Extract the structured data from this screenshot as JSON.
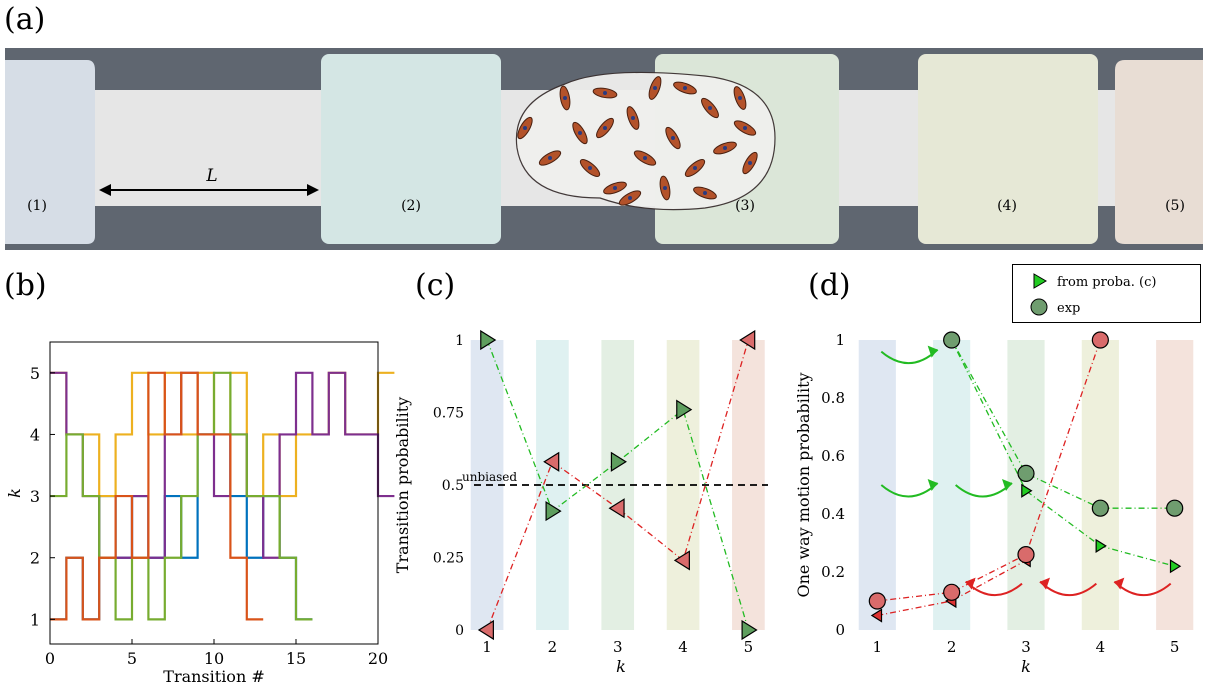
{
  "figure": {
    "panel_labels": {
      "a": "(a)",
      "b": "(b)",
      "c": "(c)",
      "d": "(d)"
    }
  },
  "panel_a": {
    "length_label": "L",
    "chamber_labels": [
      "(1)",
      "(2)",
      "(3)",
      "(4)",
      "(5)"
    ],
    "colors": {
      "background": "#5f6670",
      "channel": "#e8e8e8",
      "chamber1": "#d6dde6",
      "chamber2": "#d4e6e4",
      "chamber3": "#dbe6d8",
      "chamber4": "#e6e8d6",
      "chamber5": "#e8ddd4"
    }
  },
  "chart_data": [
    {
      "id": "b",
      "type": "line",
      "step": true,
      "title": "",
      "xlabel": "Transition #",
      "ylabel": "k",
      "xlim": [
        0,
        20
      ],
      "ylim": [
        0.6,
        5.5
      ],
      "xticks": [
        0,
        5,
        10,
        15,
        20
      ],
      "yticks": [
        1,
        2,
        3,
        4,
        5
      ],
      "series": [
        {
          "color": "#0072BD",
          "values": [
            1,
            2,
            1,
            3,
            2,
            3,
            2,
            3,
            2,
            4,
            4,
            3,
            2,
            3,
            2,
            1
          ]
        },
        {
          "color": "#EDB120",
          "values": [
            5,
            4,
            4,
            3,
            4,
            5,
            4,
            5,
            4,
            5,
            4,
            5,
            3,
            4,
            3,
            4,
            4,
            5,
            4,
            4,
            5
          ]
        },
        {
          "color": "#7E2F8E",
          "values": [
            5,
            4,
            3,
            2,
            2,
            3,
            2,
            4,
            5,
            4,
            3,
            4,
            3,
            2,
            4,
            5,
            4,
            5,
            4,
            4,
            3
          ]
        },
        {
          "color": "#77AC30",
          "values": [
            3,
            4,
            3,
            2,
            1,
            2,
            1,
            2,
            3,
            4,
            5,
            4,
            3,
            3,
            2,
            1
          ]
        },
        {
          "color": "#D95319",
          "values": [
            1,
            2,
            1,
            2,
            3,
            2,
            5,
            4,
            5,
            4,
            4,
            2,
            1
          ]
        }
      ]
    },
    {
      "id": "c",
      "type": "line",
      "title": "",
      "xlabel": "k",
      "ylabel": "Transition probability",
      "xlim": [
        0.8,
        5.3
      ],
      "ylim": [
        0,
        1
      ],
      "xticks": [
        1,
        2,
        3,
        4,
        5
      ],
      "yticks": [
        0,
        0.25,
        0.5,
        0.75,
        1
      ],
      "ytick_labels": [
        "0",
        "0.25",
        "0.5",
        "0.75",
        "1"
      ],
      "annotation": "unbiased",
      "reference_line": 0.5,
      "band_colors": [
        "#dfe7f2",
        "#dff1f1",
        "#e3efe3",
        "#eef0dc",
        "#f4e3dc"
      ],
      "series": [
        {
          "direction": "right",
          "color": "#22bb22",
          "marker_fill": "#5e9e5e",
          "x": [
            1,
            2,
            3,
            4,
            5
          ],
          "values": [
            1,
            0.41,
            0.58,
            0.76,
            0
          ]
        },
        {
          "direction": "left",
          "color": "#dd2222",
          "marker_fill": "#d96b6b",
          "x": [
            1,
            2,
            3,
            4,
            5
          ],
          "values": [
            0,
            0.58,
            0.42,
            0.24,
            1
          ]
        }
      ]
    },
    {
      "id": "d",
      "type": "scatter",
      "title": "",
      "xlabel": "k",
      "ylabel": "One way motion probability",
      "xlim": [
        0.7,
        5.3
      ],
      "ylim": [
        0,
        1
      ],
      "xticks": [
        1,
        2,
        3,
        4,
        5
      ],
      "yticks": [
        0,
        0.2,
        0.4,
        0.6,
        0.8,
        1
      ],
      "ytick_labels": [
        "0",
        "0.2",
        "0.4",
        "0.6",
        "0.8",
        "1"
      ],
      "legend": {
        "placement": "top-right",
        "entries": [
          "from proba. (c)",
          "exp"
        ]
      },
      "band_colors": [
        "#dfe7f2",
        "#dff1f1",
        "#e3efe3",
        "#eef0dc",
        "#f4e3dc"
      ],
      "series": [
        {
          "kind": "from_proba",
          "direction": "right",
          "color": "#22bb22",
          "marker_fill": "#22cc22",
          "x": [
            2,
            3,
            4,
            5
          ],
          "values": [
            1,
            0.48,
            0.29,
            0.22
          ]
        },
        {
          "kind": "from_proba",
          "direction": "left",
          "color": "#dd2222",
          "marker_fill": "#dd3333",
          "x": [
            1,
            2,
            3
          ],
          "values": [
            0.05,
            0.1,
            0.24
          ]
        },
        {
          "kind": "exp",
          "color": "#22bb22",
          "marker_fill": "#6f9d6f",
          "x": [
            2,
            3,
            4,
            5
          ],
          "values": [
            1,
            0.54,
            0.42,
            0.42
          ]
        },
        {
          "kind": "exp",
          "color": "#dd2222",
          "marker_fill": "#d96b6b",
          "x": [
            1,
            2,
            3,
            4
          ],
          "values": [
            0.1,
            0.13,
            0.26,
            1
          ]
        }
      ]
    }
  ]
}
